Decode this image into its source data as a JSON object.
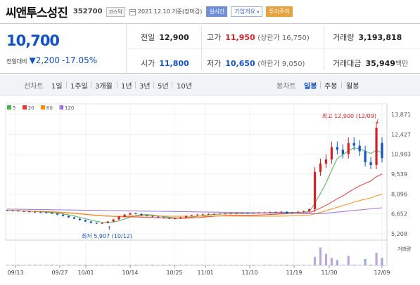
{
  "header": {
    "name": "씨앤투스성진",
    "code": "352700",
    "market": "코스닥",
    "date": "2021.12.10 기준(장마감)",
    "btn_realtime": "실시간",
    "btn_company": "기업개요",
    "btn_caution": "투자주의"
  },
  "quote": {
    "price": "10,700",
    "change_label": "전일대비",
    "change": "2,200",
    "change_pct": "-17.05%",
    "prev_label": "전일",
    "prev": "12,900",
    "high_label": "고가",
    "high": "11,950",
    "upper_limit": "(상한가 16,750)",
    "volume_label": "거래량",
    "volume": "3,193,818",
    "open_label": "시가",
    "open": "11,800",
    "low_label": "저가",
    "low": "10,650",
    "lower_limit": "(하한가 9,050)",
    "amount_label": "거래대금",
    "amount": "35,949",
    "amount_unit": "백만"
  },
  "periods": {
    "line_chart": "선차트",
    "items": [
      "1일",
      "1주일",
      "3개월",
      "1년",
      "3년",
      "5년",
      "10년"
    ],
    "candle_chart": "봉차트",
    "candle_items": [
      "일봉",
      "주봉",
      "월봉"
    ],
    "active_candle": "일봉"
  },
  "colors": {
    "up": "#d81f26",
    "down": "#1352c6",
    "ma5": "#4caf50",
    "ma20": "#e53935",
    "ma60": "#fb8c00",
    "ma120": "#9c6ade"
  },
  "chart_data": {
    "type": "candlestick",
    "legend": [
      "5",
      "20",
      "60",
      "120"
    ],
    "y_ticks": [
      13871,
      12427,
      10983,
      9539,
      8096,
      6652,
      5208
    ],
    "x_ticks": [
      "09/13",
      "09/27",
      "10/01",
      "10/14",
      "10/25",
      "11/01",
      "11/10",
      "11/19",
      "11/30",
      "12/09"
    ],
    "volume_label": "거래량",
    "high_annotation": "최고 12,900 (12/09)",
    "low_annotation": "최저 5,907 (10/12)",
    "high_value": 12900,
    "low_value": 5907
  }
}
